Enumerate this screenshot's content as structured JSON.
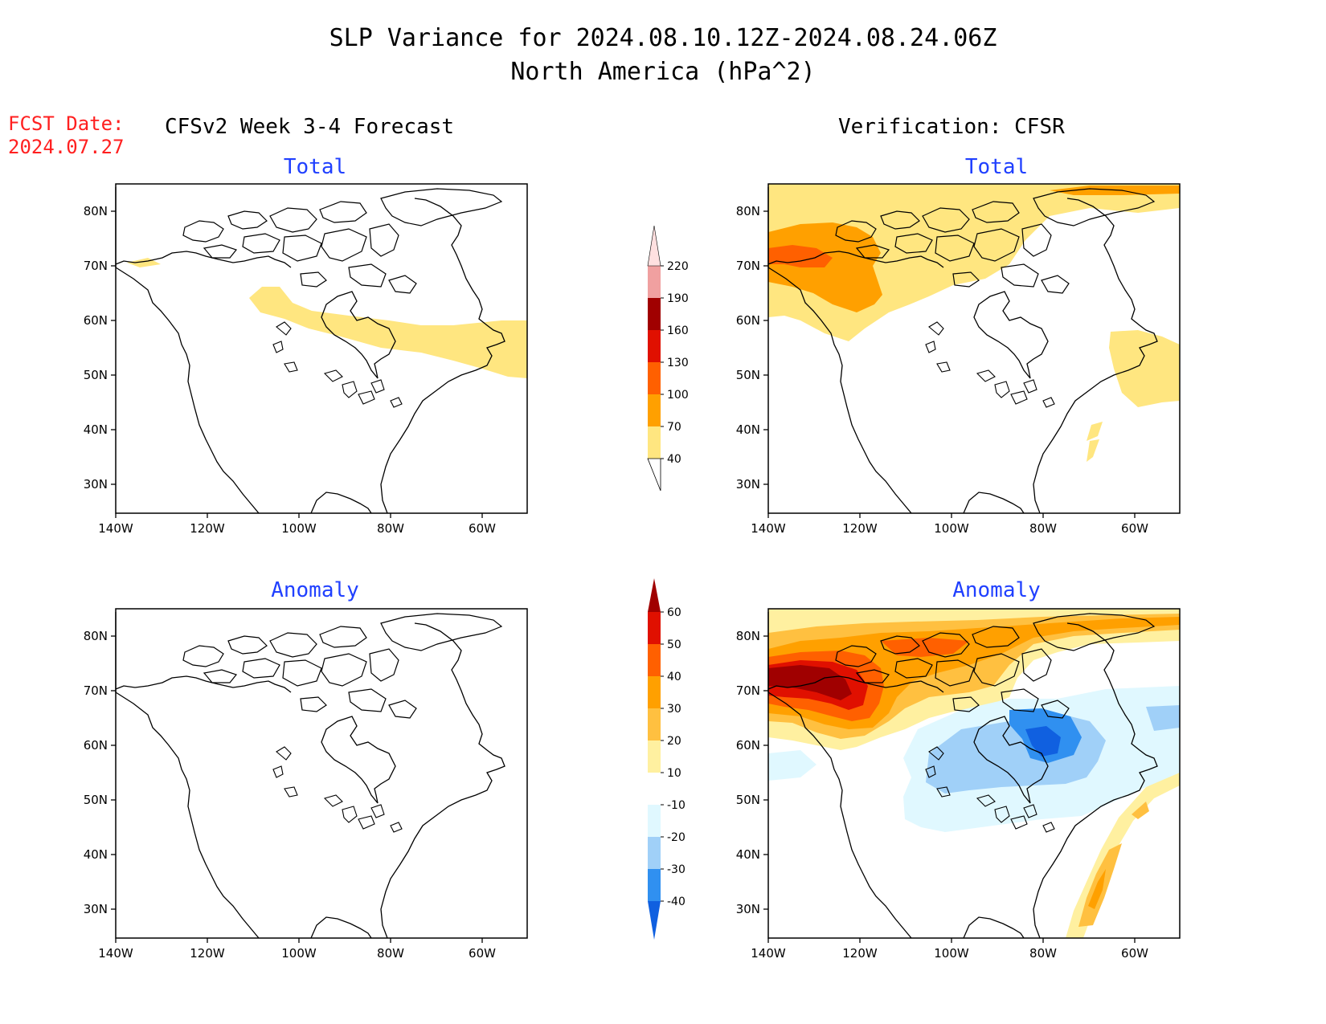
{
  "title": {
    "line1": "SLP Variance for 2024.08.10.12Z-2024.08.24.06Z",
    "line2": "North America (hPa^2)"
  },
  "fcst_date": {
    "label": "FCST Date:",
    "value": "2024.07.27"
  },
  "columns": {
    "left": "CFSv2 Week 3-4 Forecast",
    "right": "Verification: CFSR"
  },
  "panels": {
    "fcst_total": "Total",
    "verif_total": "Total",
    "fcst_anomaly": "Anomaly",
    "verif_anomaly": "Anomaly"
  },
  "axes": {
    "lat_labels": [
      "80N",
      "70N",
      "60N",
      "50N",
      "40N",
      "30N"
    ],
    "lon_labels": [
      "140W",
      "120W",
      "100W",
      "80W",
      "60W"
    ]
  },
  "colorbars": {
    "total": {
      "levels": [
        "40",
        "70",
        "100",
        "130",
        "160",
        "190",
        "220"
      ],
      "colors": [
        "#ffe680",
        "#ffa000",
        "#ff6000",
        "#e01000",
        "#a00000",
        "#f0a0a0",
        "#ffe0e0"
      ]
    },
    "anomaly": {
      "levels": [
        "-40",
        "-30",
        "-20",
        "-10",
        "10",
        "20",
        "30",
        "40",
        "50",
        "60"
      ],
      "colors": [
        "#1060e0",
        "#3090f0",
        "#a0d0f8",
        "#e0f8ff",
        "#ffffff",
        "#fff0a0",
        "#ffc040",
        "#ffa000",
        "#ff6000",
        "#e01000",
        "#a00000"
      ]
    }
  },
  "chart_data": [
    {
      "type": "heatmap",
      "title": "Total",
      "subtitle": "CFSv2 Week 3-4 Forecast",
      "units": "hPa^2",
      "features": [
        {
          "region": "Alaska north coast",
          "range": "40-70"
        },
        {
          "region": "southern Canada band (110W-50W)",
          "range": "40-70"
        }
      ]
    },
    {
      "type": "heatmap",
      "title": "Total",
      "subtitle": "Verification: CFSR",
      "units": "hPa^2",
      "features": [
        {
          "region": "Arctic and northern Canada",
          "range": "40-70"
        },
        {
          "region": "NW Canada / Beaufort",
          "range": "70-100"
        },
        {
          "region": "Yukon core",
          "range": "100-130"
        },
        {
          "region": "Newfoundland / western Atlantic",
          "range": "40-70"
        }
      ]
    },
    {
      "type": "heatmap",
      "title": "Anomaly",
      "subtitle": "CFSv2 Week 3-4 Forecast",
      "units": "hPa^2",
      "features": [
        {
          "region": "entire domain",
          "range": "-10-10"
        }
      ]
    },
    {
      "type": "heatmap",
      "title": "Anomaly",
      "subtitle": "Verification: CFSR",
      "units": "hPa^2",
      "features": [
        {
          "region": "NW Canada / Alaska",
          "range": "50-60+"
        },
        {
          "region": "Arctic archipelago",
          "range": "20-40"
        },
        {
          "region": "Hudson Bay",
          "range": "-40--30"
        },
        {
          "region": "central Canada",
          "range": "-30--10"
        },
        {
          "region": "western Atlantic off US coast",
          "range": "10-40"
        }
      ]
    }
  ]
}
